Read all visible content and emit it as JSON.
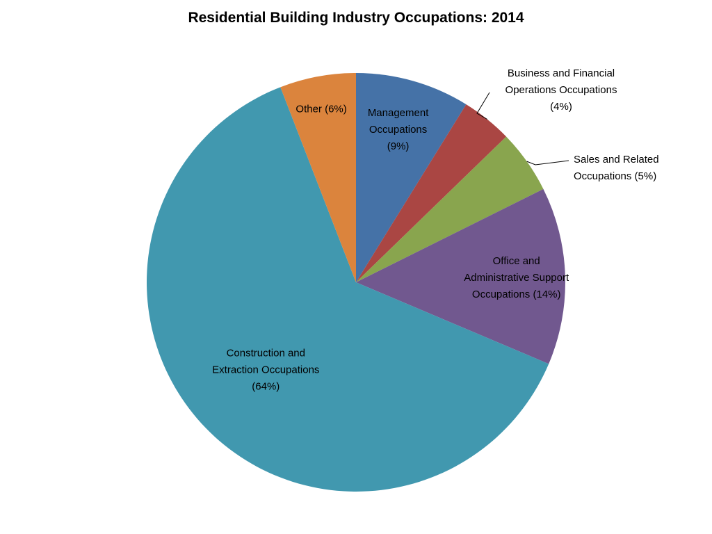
{
  "chart_data": {
    "type": "pie",
    "title": "Residential Building Industry Occupations: 2014",
    "start_angle_deg": 0,
    "direction": "clockwise",
    "legend": "none",
    "slices": [
      {
        "name": "Management Occupations",
        "value": 9,
        "label_lines": [
          "Management",
          "Occupations",
          "(9%)"
        ],
        "color": "#4572A7"
      },
      {
        "name": "Business and Financial Operations Occupations",
        "value": 4,
        "label_lines": [
          "Business and Financial",
          "Operations Occupations",
          "(4%)"
        ],
        "color": "#AA4643"
      },
      {
        "name": "Sales and Related Occupations",
        "value": 5,
        "label_lines": [
          "Sales and Related",
          "Occupations (5%)"
        ],
        "color": "#89A54E"
      },
      {
        "name": "Office and Administrative Support Occupations",
        "value": 14,
        "label_lines": [
          "Office and",
          "Administrative Support",
          "Occupations (14%)"
        ],
        "color": "#71588F"
      },
      {
        "name": "Construction and Extraction Occupations",
        "value": 64,
        "label_lines": [
          "Construction and",
          "Extraction Occupations",
          "(64%)"
        ],
        "color": "#4198AF"
      },
      {
        "name": "Other",
        "value": 6,
        "label_lines": [
          "Other (6%)"
        ],
        "color": "#DB843D"
      }
    ]
  }
}
